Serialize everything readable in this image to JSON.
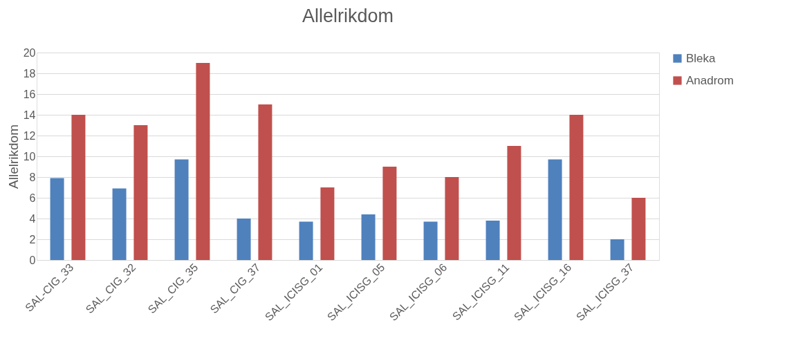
{
  "chart_data": {
    "type": "bar",
    "title": "Allelrikdom",
    "ylabel": "Allelrikdom",
    "categories": [
      "SAL-CIG_33",
      "SAL_CIG_32",
      "SAL_CIG_35",
      "SAL_CIG_37",
      "SAL_ICISG_01",
      "SAL_ICISG_05",
      "SAL_ICISG_06",
      "SAL_ICISG_11",
      "SAL_ICISG_16",
      "SAL_ICISG_37"
    ],
    "series": [
      {
        "name": "Bleka",
        "color": "#4f81bd",
        "values": [
          7.9,
          6.9,
          9.7,
          4.0,
          3.7,
          4.4,
          3.7,
          3.8,
          9.7,
          2.0
        ]
      },
      {
        "name": "Anadrom",
        "color": "#c0504d",
        "values": [
          14,
          13,
          19,
          15,
          7,
          9,
          8,
          11,
          14,
          6
        ]
      }
    ],
    "ylim": [
      0,
      20
    ],
    "yticks": [
      0,
      2,
      4,
      6,
      8,
      10,
      12,
      14,
      16,
      18,
      20
    ],
    "grid": "y",
    "legend": "right"
  }
}
